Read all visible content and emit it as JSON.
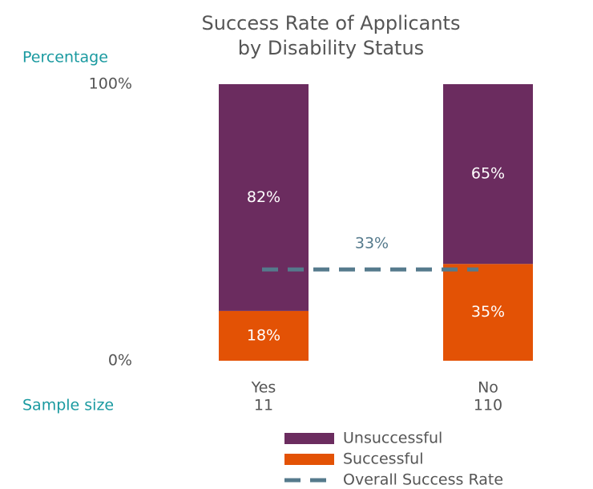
{
  "chart_data": {
    "type": "bar",
    "stacked": true,
    "title": "Success Rate of Applicants by Disability Status",
    "y_label": "Percentage",
    "sample_size_label": "Sample size",
    "categories": [
      "Yes",
      "No"
    ],
    "sample_sizes": [
      11,
      110
    ],
    "series": [
      {
        "name": "Successful",
        "color": "#e35205",
        "values": [
          18,
          35
        ],
        "value_labels": [
          "18%",
          "35%"
        ]
      },
      {
        "name": "Unsuccessful",
        "color": "#6b2c5f",
        "values": [
          82,
          65
        ],
        "value_labels": [
          "82%",
          "65%"
        ]
      }
    ],
    "reference_line": {
      "name": "Overall Success Rate",
      "value": 33,
      "value_label": "33%",
      "color": "#557a8c",
      "style": "dashed"
    },
    "ylim": [
      0,
      100
    ],
    "yticks": [
      {
        "value": 0,
        "label": "0%"
      },
      {
        "value": 100,
        "label": "100%"
      }
    ],
    "grid": false
  }
}
